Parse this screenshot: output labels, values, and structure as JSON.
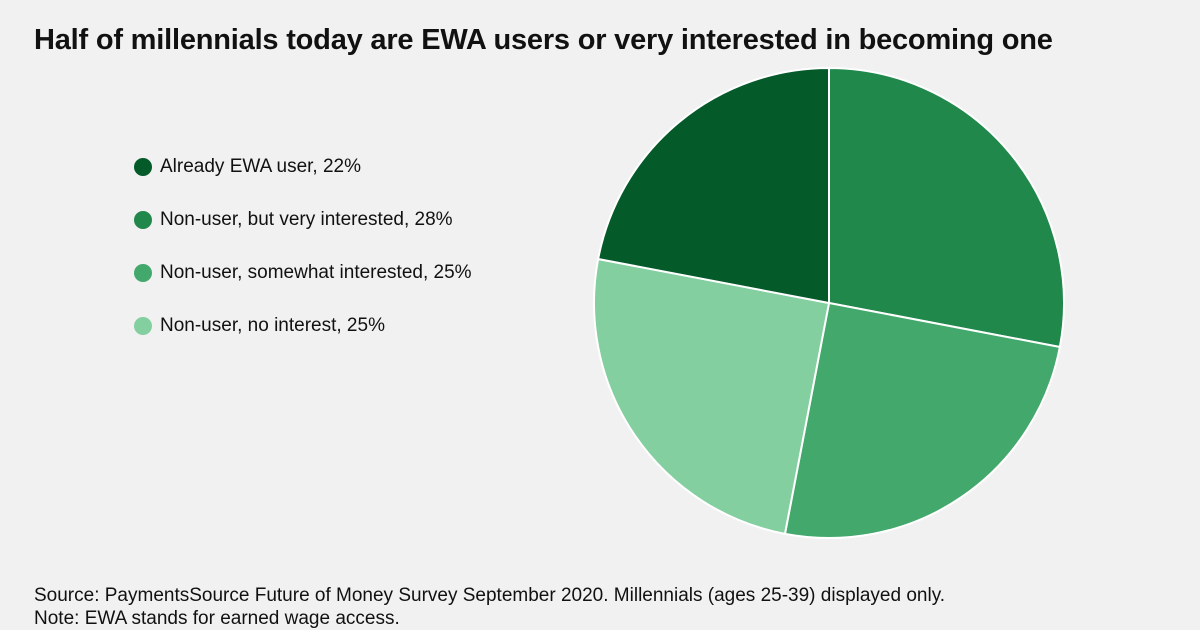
{
  "title": "Half of millennials today are EWA users or very interested in becoming one",
  "chart_data": {
    "type": "pie",
    "title": "Half of millennials today are EWA users or very interested in becoming one",
    "slices": [
      {
        "label": "Already EWA user, 22%",
        "value": 22,
        "color": "#045a29"
      },
      {
        "label": "Non-user, but very interested, 28%",
        "value": 28,
        "color": "#20884b"
      },
      {
        "label": "Non-user, somewhat interested, 25%",
        "value": 25,
        "color": "#43a86b"
      },
      {
        "label": "Non-user, no interest, 25%",
        "value": 25,
        "color": "#84cfa0"
      }
    ],
    "legend_position": "left"
  },
  "footer": {
    "source": "Source: PaymentsSource Future of Money Survey September 2020. Millennials (ages 25-39) displayed only.",
    "note": "Note: EWA stands for earned wage access."
  }
}
